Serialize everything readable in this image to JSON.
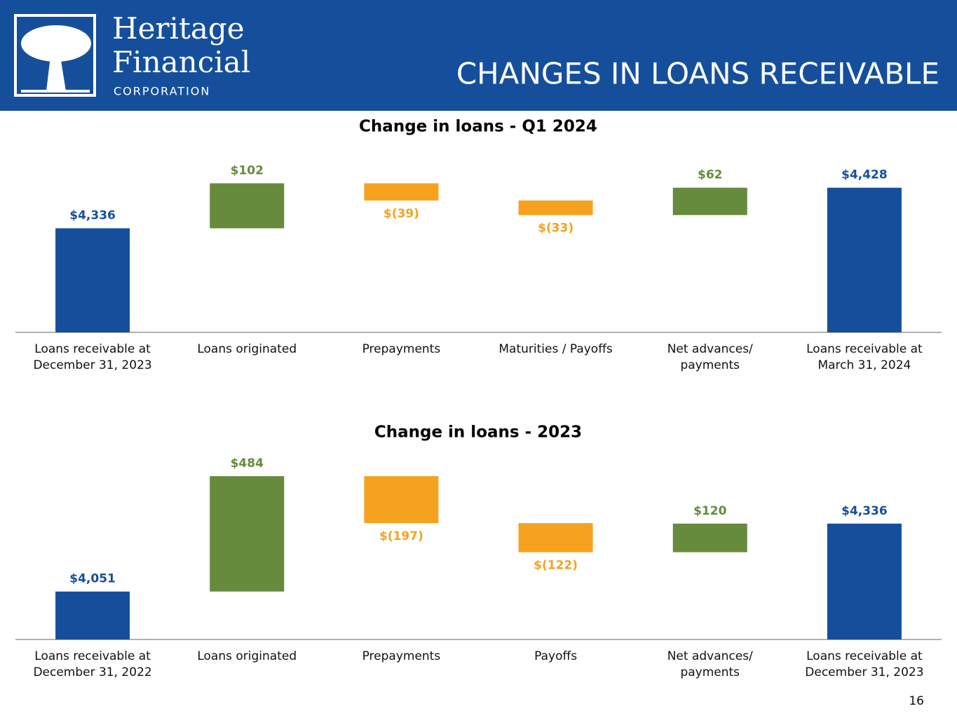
{
  "header": {
    "logo_line1": "Heritage",
    "logo_line2": "Financial",
    "logo_line3": "CORPORATION",
    "title": "CHANGES IN LOANS RECEIVABLE"
  },
  "page_number": "16",
  "chart_data": [
    {
      "type": "waterfall",
      "title": "Change in loans - Q1 2024",
      "categories": [
        [
          "Loans receivable at",
          "December 31, 2023"
        ],
        [
          "Loans originated"
        ],
        [
          "Prepayments"
        ],
        [
          "Maturities / Payoffs"
        ],
        [
          "Net advances/",
          "payments"
        ],
        [
          "Loans receivable at",
          "March 31, 2024"
        ]
      ],
      "values": [
        4336,
        102,
        -39,
        -33,
        62,
        4428
      ],
      "value_labels": [
        "$4,336",
        "$102",
        "$(39)",
        "$(33)",
        "$62",
        "$4,428"
      ],
      "totals": [
        true,
        false,
        false,
        false,
        false,
        true
      ],
      "colors": {
        "total": "#154f9c",
        "increase": "#668b3c",
        "decrease": "#f6a21e"
      },
      "ylim": [
        4100,
        4480
      ]
    },
    {
      "type": "waterfall",
      "title": "Change in loans - 2023",
      "categories": [
        [
          "Loans receivable at",
          "December 31, 2022"
        ],
        [
          "Loans originated"
        ],
        [
          "Prepayments"
        ],
        [
          "Payoffs"
        ],
        [
          "Net advances/",
          "payments"
        ],
        [
          "Loans receivable at",
          "December 31, 2023"
        ]
      ],
      "values": [
        4051,
        484,
        -197,
        -122,
        120,
        4336
      ],
      "value_labels": [
        "$4,051",
        "$484",
        "$(197)",
        "$(122)",
        "$120",
        "$4,336"
      ],
      "totals": [
        true,
        false,
        false,
        false,
        false,
        true
      ],
      "colors": {
        "total": "#154f9c",
        "increase": "#668b3c",
        "decrease": "#f6a21e"
      },
      "ylim": [
        3850,
        4600
      ]
    }
  ]
}
